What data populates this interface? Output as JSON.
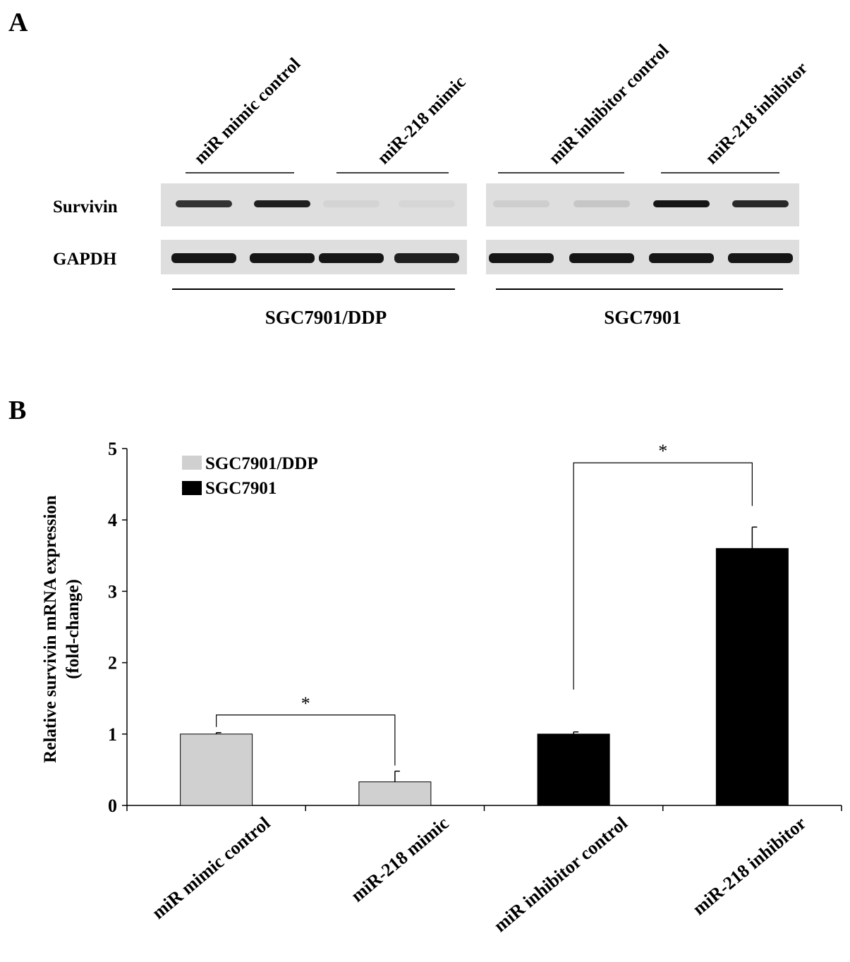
{
  "panel_a": {
    "label": "A",
    "groups": [
      "miR mimic control",
      "miR-218 mimic",
      "miR inhibitor control",
      "miR-218 inhibitor"
    ],
    "rows": [
      "Survivin",
      "GAPDH"
    ],
    "cell_lines": [
      "SGC7901/DDP",
      "SGC7901"
    ],
    "blot": {
      "survivin_band_intensity": [
        0.85,
        0.95,
        0.05,
        0.04,
        0.08,
        0.12,
        1.0,
        0.9
      ],
      "gapdh_band_intensity": [
        1.0,
        1.0,
        1.0,
        0.95,
        1.0,
        1.0,
        1.0,
        1.0
      ],
      "colors": {
        "background": "#dedede",
        "band": "#151515"
      }
    }
  },
  "panel_b": {
    "label": "B",
    "significance_marker": "*"
  },
  "chart_data": {
    "type": "bar",
    "categories": [
      "miR mimic control",
      "miR-218 mimic",
      "miR inhibitor control",
      "miR-218 inhibitor"
    ],
    "values": [
      1.0,
      0.33,
      1.0,
      3.6
    ],
    "errors": [
      0.02,
      0.15,
      0.03,
      0.3
    ],
    "bar_series": [
      "SGC7901/DDP",
      "SGC7901/DDP",
      "SGC7901",
      "SGC7901"
    ],
    "series": [
      {
        "name": "SGC7901/DDP",
        "color": "#d0d0d0"
      },
      {
        "name": "SGC7901",
        "color": "#000000"
      }
    ],
    "title": "",
    "xlabel": "",
    "ylabel": "Relative survivin mRNA expression",
    "ylabel_line2": "(fold-change)",
    "ylim": [
      0,
      5
    ],
    "yticks": [
      "0",
      "1",
      "2",
      "3",
      "4",
      "5"
    ],
    "grid": false,
    "legend": "top-left",
    "significance": [
      {
        "between": [
          0,
          1
        ],
        "label": "*"
      },
      {
        "between": [
          2,
          3
        ],
        "label": "*"
      }
    ]
  }
}
